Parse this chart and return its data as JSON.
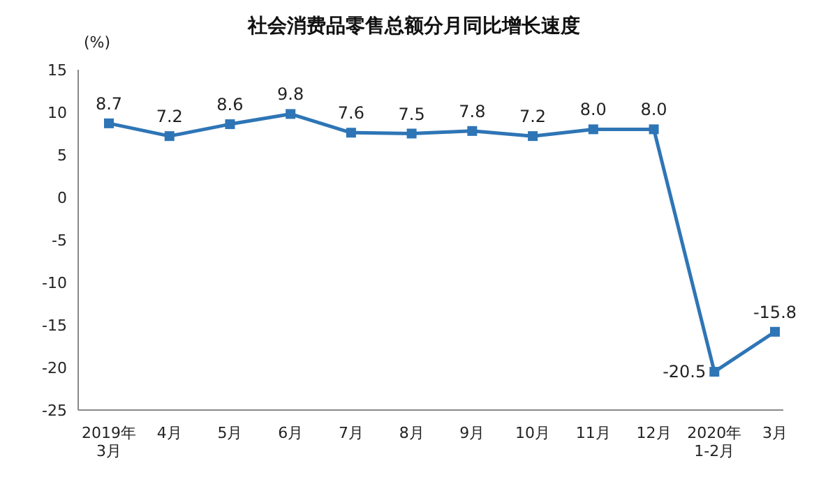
{
  "chart_data": {
    "type": "line",
    "title": "社会消费品零售总额分月同比增长速度",
    "ylabel": "(%)",
    "categories": [
      "2019年\n3月",
      "4月",
      "5月",
      "6月",
      "7月",
      "8月",
      "9月",
      "10月",
      "11月",
      "12月",
      "2020年\n1-2月",
      "3月"
    ],
    "series": [
      {
        "color": "#2e75b6",
        "values": [
          8.7,
          7.2,
          8.6,
          9.8,
          7.6,
          7.5,
          7.8,
          7.2,
          8.0,
          8.0,
          -20.5,
          -15.8
        ],
        "value_labels": [
          "8.7",
          "7.2",
          "8.6",
          "9.8",
          "7.6",
          "7.5",
          "7.8",
          "7.2",
          "8.0",
          "8.0",
          "-20.5",
          "-15.8"
        ]
      }
    ],
    "ylim": [
      -25,
      15
    ],
    "yticks": [
      -25,
      -20,
      -15,
      -10,
      -5,
      0,
      5,
      10,
      15
    ],
    "grid": false,
    "legend": false,
    "marker": "square",
    "line_style": "solid"
  }
}
